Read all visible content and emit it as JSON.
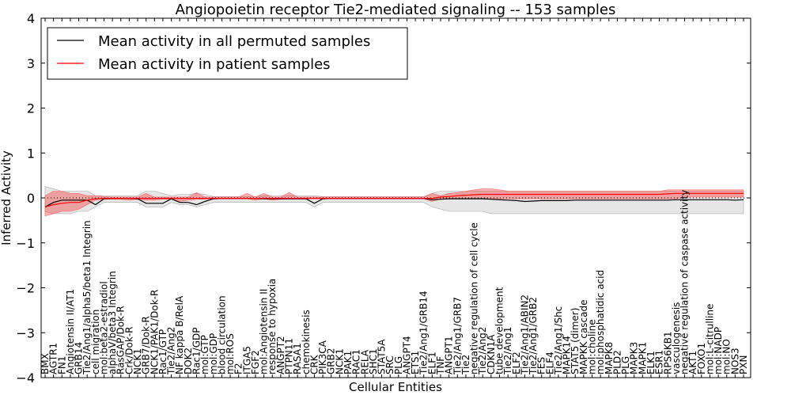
{
  "chart_data": {
    "type": "line",
    "title": "Angiopoietin receptor Tie2-mediated signaling -- 153 samples",
    "xlabel": "Cellular Entities",
    "ylabel": "Inferred Activity",
    "ylim": [
      -4,
      4
    ],
    "yticks": [
      4,
      3,
      2,
      1,
      0,
      -1,
      -2,
      -3,
      -4
    ],
    "reference_line": 0,
    "legend_location": "upper-left",
    "categories": [
      "BMX",
      "AGTR1",
      "FN1",
      "Angiotensin II/AT1",
      "GRB14",
      "Tie2/Ang1/alpha5/beta1 Integrin",
      "cell migration",
      "mol:beta2-estradiol",
      "alphaV/beta3 Integrin",
      "RasGAP/Dok-R",
      "Crk/Dok-R",
      "NCK1",
      "GRB7/Dok-R",
      "NCK1/PAK1/Dok-R",
      "Rac1/GTP",
      "Tie2/Ang2",
      "NF kappa B/RelA",
      "DOK2",
      "Rac1/GDP",
      "mol:GTP",
      "mol:GDP",
      "blood circulation",
      "mol:ROS",
      "F2",
      "ITGA5",
      "FGF2",
      "mol:Angiotensin II",
      "response to hypoxia",
      "ANGPT2",
      "PTPN11",
      "RASA1",
      "chemokinesis",
      "CRK",
      "PIK3CA",
      "GRB2",
      "NCK1",
      "PAK1",
      "RAC1",
      "RELA",
      "SHC1",
      "STAT5A",
      "SRC",
      "PLG",
      "ANGPT4",
      "ETS1",
      "Tie2/Ang1/GRB14",
      "ELF1",
      "TNF",
      "ANGPT1",
      "Tie2/Ang1/GRB7",
      "Tie2",
      "negative regulation of cell cycle",
      "Tie2/Ang2",
      "CDKN1A",
      "tube development",
      "Tie2/Ang1",
      "ELF2",
      "Tie2/Ang1/ABIN2",
      "Tie2/Ang1/GRB2",
      "FES",
      "ELF4",
      "Tie2/Ang1/Shc",
      "MAPK14",
      "STAT5 (dimer)",
      "MAPKK cascade",
      "mol:choline",
      "mol:phosphatidic acid",
      "MAPK8",
      "PLD2",
      "PLG",
      "MAPK3",
      "MAPK1",
      "ELK1",
      "ESR1",
      "RPS6KB1",
      "vasculogenesis",
      "negative regulation of caspase activity",
      "AKT1",
      "FOXO1",
      "mol:L-citrulline",
      "mol:NADP",
      "mol:NO",
      "NOS3",
      "PXN"
    ],
    "series": [
      {
        "name": "Mean activity in all permuted samples",
        "color": "#000000",
        "values": [
          -0.2,
          -0.1,
          -0.05,
          -0.05,
          -0.05,
          -0.05,
          -0.15,
          -0.02,
          -0.01,
          -0.01,
          -0.01,
          -0.02,
          -0.12,
          -0.12,
          -0.12,
          -0.02,
          -0.1,
          -0.1,
          -0.15,
          -0.08,
          -0.02,
          -0.01,
          -0.01,
          -0.01,
          -0.01,
          -0.01,
          -0.02,
          -0.02,
          -0.02,
          -0.02,
          -0.02,
          -0.02,
          -0.12,
          -0.02,
          -0.01,
          -0.01,
          -0.01,
          -0.01,
          -0.01,
          -0.01,
          -0.01,
          -0.01,
          -0.01,
          -0.01,
          -0.01,
          -0.01,
          -0.04,
          -0.03,
          -0.02,
          -0.02,
          -0.02,
          -0.02,
          -0.02,
          -0.03,
          -0.04,
          -0.05,
          -0.06,
          -0.08,
          -0.07,
          -0.06,
          -0.06,
          -0.06,
          -0.06,
          -0.05,
          -0.05,
          -0.05,
          -0.05,
          -0.05,
          -0.05,
          -0.05,
          -0.05,
          -0.05,
          -0.05,
          -0.05,
          -0.05,
          -0.04,
          -0.04,
          -0.04,
          -0.04,
          -0.04,
          -0.04,
          -0.04,
          -0.05,
          -0.04
        ]
      },
      {
        "name": "Mean activity in patient samples",
        "color": "#ff0000",
        "values": [
          -0.2,
          -0.15,
          -0.12,
          -0.1,
          -0.1,
          -0.05,
          -0.02,
          -0.01,
          -0.01,
          -0.01,
          -0.01,
          -0.01,
          -0.01,
          -0.01,
          -0.01,
          -0.01,
          -0.01,
          -0.01,
          -0.01,
          -0.01,
          -0.01,
          -0.01,
          -0.01,
          -0.01,
          -0.01,
          -0.01,
          -0.01,
          -0.01,
          -0.01,
          -0.01,
          -0.01,
          -0.01,
          -0.01,
          -0.01,
          -0.01,
          -0.01,
          -0.01,
          -0.01,
          -0.01,
          -0.01,
          -0.01,
          -0.01,
          -0.01,
          -0.01,
          -0.01,
          -0.01,
          -0.01,
          0.02,
          0.03,
          0.05,
          0.06,
          0.07,
          0.08,
          0.08,
          0.08,
          0.08,
          0.08,
          0.08,
          0.08,
          0.08,
          0.08,
          0.08,
          0.08,
          0.08,
          0.08,
          0.08,
          0.08,
          0.08,
          0.08,
          0.08,
          0.08,
          0.08,
          0.08,
          0.08,
          0.09,
          0.1,
          0.1,
          0.1,
          0.1,
          0.1,
          0.1,
          0.1,
          0.1,
          0.1
        ]
      }
    ],
    "bands": [
      {
        "name": "permuted-range",
        "color": "#999999",
        "lower": [
          -0.3,
          -0.35,
          -0.35,
          -0.35,
          -0.3,
          -0.3,
          -0.2,
          -0.1,
          -0.1,
          -0.1,
          -0.1,
          -0.1,
          -0.2,
          -0.2,
          -0.2,
          -0.1,
          -0.15,
          -0.15,
          -0.2,
          -0.15,
          -0.1,
          -0.1,
          -0.1,
          -0.1,
          -0.1,
          -0.1,
          -0.1,
          -0.1,
          -0.1,
          -0.1,
          -0.1,
          -0.1,
          -0.2,
          -0.1,
          -0.1,
          -0.1,
          -0.1,
          -0.1,
          -0.1,
          -0.1,
          -0.1,
          -0.1,
          -0.1,
          -0.1,
          -0.1,
          -0.1,
          -0.2,
          -0.25,
          -0.3,
          -0.3,
          -0.3,
          -0.3,
          -0.3,
          -0.35,
          -0.35,
          -0.35,
          -0.35,
          -0.35,
          -0.35,
          -0.35,
          -0.35,
          -0.35,
          -0.35,
          -0.35,
          -0.35,
          -0.35,
          -0.35,
          -0.35,
          -0.35,
          -0.35,
          -0.35,
          -0.35,
          -0.35,
          -0.35,
          -0.35,
          -0.35,
          -0.35,
          -0.35,
          -0.35,
          -0.35,
          -0.35,
          -0.35,
          -0.35,
          -0.35
        ],
        "upper": [
          0.25,
          0.2,
          0.15,
          0.15,
          0.15,
          0.15,
          0.05,
          0.05,
          0.05,
          0.05,
          0.05,
          0.05,
          0.15,
          0.15,
          0.1,
          0.05,
          0.08,
          0.08,
          0.1,
          0.08,
          0.03,
          0.03,
          0.03,
          0.03,
          0.03,
          0.03,
          0.05,
          0.05,
          0.05,
          0.05,
          0.05,
          0.05,
          0.05,
          0.03,
          0.03,
          0.03,
          0.03,
          0.03,
          0.03,
          0.03,
          0.03,
          0.03,
          0.03,
          0.03,
          0.03,
          0.03,
          0.1,
          0.15,
          0.15,
          0.15,
          0.15,
          0.15,
          0.15,
          0.15,
          0.15,
          0.15,
          0.15,
          0.15,
          0.15,
          0.15,
          0.15,
          0.15,
          0.15,
          0.15,
          0.15,
          0.15,
          0.15,
          0.15,
          0.15,
          0.15,
          0.15,
          0.15,
          0.15,
          0.15,
          0.15,
          0.15,
          0.15,
          0.15,
          0.15,
          0.15,
          0.15,
          0.15,
          0.15,
          0.15
        ]
      },
      {
        "name": "patient-range",
        "color": "#ff0000",
        "lower": [
          -0.4,
          -0.35,
          -0.3,
          -0.3,
          -0.25,
          -0.15,
          -0.05,
          -0.03,
          -0.03,
          -0.03,
          -0.05,
          -0.03,
          -0.05,
          -0.05,
          -0.03,
          -0.03,
          -0.08,
          -0.05,
          -0.03,
          -0.03,
          -0.02,
          -0.02,
          -0.02,
          -0.02,
          -0.02,
          -0.05,
          -0.02,
          -0.05,
          -0.03,
          -0.02,
          -0.02,
          -0.02,
          -0.02,
          -0.02,
          -0.02,
          -0.02,
          -0.02,
          -0.02,
          -0.02,
          -0.02,
          -0.02,
          -0.02,
          -0.02,
          -0.02,
          -0.02,
          -0.02,
          -0.08,
          -0.02,
          -0.02,
          -0.02,
          -0.02,
          -0.02,
          -0.02,
          -0.02,
          -0.02,
          -0.02,
          -0.02,
          -0.02,
          -0.02,
          -0.02,
          -0.02,
          -0.02,
          -0.02,
          -0.02,
          -0.02,
          -0.02,
          -0.02,
          -0.02,
          -0.02,
          -0.02,
          -0.02,
          -0.02,
          -0.02,
          -0.02,
          -0.02,
          -0.02,
          0.02,
          0.02,
          0.02,
          0.02,
          0.02,
          0.02,
          0.02,
          0.02
        ],
        "upper": [
          0.05,
          0.15,
          0.15,
          0.1,
          0.1,
          0.05,
          0.05,
          0.03,
          0.02,
          0.02,
          0.02,
          0.02,
          0.1,
          0.02,
          0.02,
          0.02,
          0.02,
          0.02,
          0.12,
          0.02,
          0.02,
          0.02,
          0.02,
          0.02,
          0.1,
          0.02,
          0.1,
          0.02,
          0.02,
          0.12,
          0.02,
          0.02,
          0.02,
          0.02,
          0.02,
          0.02,
          0.02,
          0.02,
          0.02,
          0.02,
          0.02,
          0.02,
          0.02,
          0.02,
          0.02,
          0.02,
          0.1,
          0.05,
          0.1,
          0.12,
          0.15,
          0.18,
          0.2,
          0.2,
          0.18,
          0.15,
          0.15,
          0.15,
          0.15,
          0.15,
          0.15,
          0.15,
          0.15,
          0.15,
          0.15,
          0.15,
          0.15,
          0.15,
          0.15,
          0.15,
          0.15,
          0.15,
          0.15,
          0.15,
          0.18,
          0.18,
          0.18,
          0.18,
          0.18,
          0.18,
          0.18,
          0.18,
          0.18,
          0.18
        ]
      }
    ]
  }
}
